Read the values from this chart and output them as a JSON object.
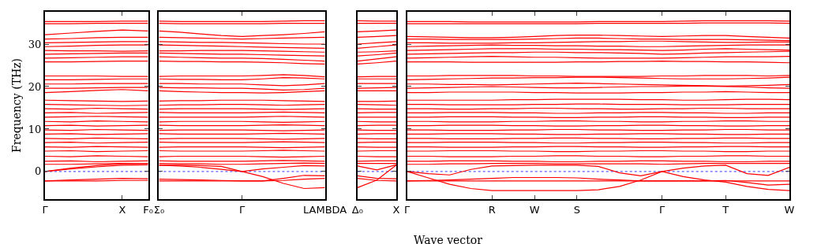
{
  "chart_data": [
    {
      "type": "line",
      "ylabel": "Frequency (THz)",
      "color": "#ff0000",
      "line_style": "solid",
      "marker": "none",
      "categories": [
        "Γ",
        null,
        null,
        "X",
        "F₀"
      ],
      "ylim": [
        -6.5,
        37.6
      ],
      "yticks": [
        0,
        10,
        20,
        30
      ],
      "ref_lines": [
        {
          "axis": "y",
          "value": 0,
          "color": "#0000ff",
          "line_style": "dotted"
        }
      ],
      "series": [
        {
          "values": [
            35.3,
            35.3,
            35.3,
            35.4,
            35.4
          ]
        },
        {
          "values": [
            34.8,
            34.8,
            34.9,
            34.9,
            34.9
          ]
        },
        {
          "values": [
            32.2,
            32.6,
            33.0,
            33.3,
            33.1
          ]
        },
        {
          "values": [
            31.2,
            31.3,
            31.5,
            31.6,
            31.6
          ]
        },
        {
          "values": [
            30.3,
            30.4,
            30.5,
            30.6,
            30.6
          ]
        },
        {
          "values": [
            29.4,
            29.5,
            29.7,
            29.8,
            29.8
          ]
        },
        {
          "values": [
            28.5,
            28.4,
            28.4,
            28.3,
            28.4
          ]
        },
        {
          "values": [
            27.6,
            27.7,
            27.8,
            27.9,
            27.9
          ]
        },
        {
          "values": [
            26.7,
            26.8,
            26.9,
            27.0,
            27.0
          ]
        },
        {
          "values": [
            25.8,
            25.8,
            25.9,
            26.0,
            26.0
          ]
        },
        {
          "values": [
            22.5,
            22.5,
            22.5,
            22.4,
            22.4
          ]
        },
        {
          "values": [
            21.6,
            21.6,
            21.7,
            21.8,
            21.8
          ]
        },
        {
          "values": [
            20.6,
            20.6,
            20.7,
            20.7,
            20.7
          ]
        },
        {
          "values": [
            19.6,
            19.6,
            19.7,
            19.8,
            19.8
          ]
        },
        {
          "values": [
            18.6,
            18.8,
            19.1,
            19.3,
            19.0
          ]
        },
        {
          "values": [
            16.8,
            16.7,
            16.6,
            16.5,
            16.6
          ]
        },
        {
          "values": [
            15.8,
            15.7,
            15.6,
            15.5,
            15.6
          ]
        },
        {
          "values": [
            14.8,
            14.7,
            14.9,
            14.8,
            14.7
          ]
        },
        {
          "values": [
            13.8,
            13.9,
            13.7,
            13.8,
            13.9
          ]
        },
        {
          "values": [
            12.8,
            12.9,
            13.0,
            12.9,
            12.8
          ]
        },
        {
          "values": [
            11.8,
            11.7,
            11.9,
            11.8,
            11.7
          ]
        },
        {
          "values": [
            10.8,
            10.9,
            10.7,
            10.8,
            10.9
          ]
        },
        {
          "values": [
            9.8,
            9.7,
            9.9,
            9.8,
            9.7
          ]
        },
        {
          "values": [
            8.8,
            8.9,
            8.7,
            8.8,
            8.9
          ]
        },
        {
          "values": [
            7.8,
            7.7,
            7.9,
            7.8,
            7.7
          ]
        },
        {
          "values": [
            6.8,
            6.9,
            6.7,
            6.8,
            6.9
          ]
        },
        {
          "values": [
            5.8,
            5.7,
            5.9,
            5.8,
            5.7
          ]
        },
        {
          "values": [
            4.8,
            4.9,
            4.7,
            4.8,
            4.9
          ]
        },
        {
          "values": [
            3.6,
            3.5,
            3.7,
            3.6,
            3.5
          ]
        },
        {
          "values": [
            2.4,
            2.5,
            2.3,
            2.4,
            2.5
          ]
        },
        {
          "values": [
            1.7,
            1.7,
            1.8,
            1.9,
            1.9
          ]
        },
        {
          "values": [
            0,
            0.6,
            1.1,
            1.5,
            1.6
          ]
        },
        {
          "values": [
            0,
            0.8,
            1.4,
            1.8,
            1.9
          ]
        },
        {
          "values": [
            -2.2,
            -2.2,
            -2.2,
            -2.1,
            -2.1
          ]
        },
        {
          "values": [
            -2.2,
            -2.0,
            -1.8,
            -1.6,
            -1.7
          ]
        }
      ]
    },
    {
      "type": "line",
      "color": "#ff0000",
      "line_style": "solid",
      "marker": "none",
      "tick_labels": "x",
      "categories": [
        "Σ₀",
        null,
        null,
        null,
        "Γ",
        null,
        null,
        null,
        "LAMBDA"
      ],
      "ylim": [
        -6.5,
        37.6
      ],
      "yticks": [
        0,
        10,
        20,
        30
      ],
      "ref_lines": [
        {
          "axis": "y",
          "value": 0,
          "color": "#0000ff",
          "line_style": "dotted"
        }
      ],
      "series": [
        {
          "values": [
            35.4,
            35.3,
            35.3,
            35.3,
            35.3,
            35.3,
            35.4,
            35.5,
            35.5
          ]
        },
        {
          "values": [
            34.9,
            34.8,
            34.8,
            34.8,
            34.8,
            34.8,
            34.9,
            34.9,
            34.9
          ]
        },
        {
          "values": [
            33.1,
            32.8,
            32.4,
            32.0,
            31.8,
            32.0,
            32.2,
            32.5,
            32.9
          ]
        },
        {
          "values": [
            31.6,
            31.5,
            31.4,
            31.3,
            31.2,
            31.3,
            31.4,
            31.5,
            31.6
          ]
        },
        {
          "values": [
            30.6,
            30.5,
            30.4,
            30.4,
            30.3,
            30.2,
            30.1,
            30.0,
            30.0
          ]
        },
        {
          "values": [
            29.8,
            29.7,
            29.6,
            29.5,
            29.4,
            29.3,
            29.2,
            29.1,
            29.0
          ]
        },
        {
          "values": [
            28.4,
            28.4,
            28.5,
            28.5,
            28.5,
            28.4,
            28.3,
            28.2,
            28.1
          ]
        },
        {
          "values": [
            27.9,
            27.8,
            27.7,
            27.6,
            27.6,
            27.5,
            27.4,
            27.3,
            27.2
          ]
        },
        {
          "values": [
            27.0,
            26.9,
            26.8,
            26.7,
            26.7,
            26.6,
            26.4,
            26.2,
            26.0
          ]
        },
        {
          "values": [
            26.0,
            25.9,
            25.9,
            25.8,
            25.8,
            25.7,
            25.6,
            25.4,
            25.3
          ]
        },
        {
          "values": [
            22.4,
            22.5,
            22.5,
            22.5,
            22.5,
            22.6,
            22.8,
            22.6,
            22.3
          ]
        },
        {
          "values": [
            21.8,
            21.7,
            21.7,
            21.6,
            21.6,
            21.8,
            22.1,
            22.0,
            21.8
          ]
        },
        {
          "values": [
            20.7,
            20.7,
            20.6,
            20.6,
            20.6,
            20.4,
            20.2,
            20.4,
            20.7
          ]
        },
        {
          "values": [
            19.8,
            19.7,
            19.7,
            19.6,
            19.6,
            19.4,
            19.2,
            19.3,
            19.6
          ]
        },
        {
          "values": [
            19.0,
            18.8,
            18.7,
            18.6,
            18.6,
            18.5,
            18.6,
            18.8,
            19.0
          ]
        },
        {
          "values": [
            16.6,
            16.7,
            16.7,
            16.8,
            16.8,
            16.8,
            16.7,
            16.6,
            16.5
          ]
        },
        {
          "values": [
            15.6,
            15.7,
            15.7,
            15.8,
            15.8,
            15.7,
            15.6,
            15.7,
            15.8
          ]
        },
        {
          "values": [
            14.7,
            14.8,
            14.8,
            14.8,
            14.8,
            14.7,
            14.6,
            14.7,
            14.8
          ]
        },
        {
          "values": [
            13.9,
            13.8,
            13.8,
            13.8,
            13.8,
            13.9,
            14.0,
            13.9,
            13.8
          ]
        },
        {
          "values": [
            12.8,
            12.8,
            12.8,
            12.8,
            12.8,
            12.9,
            13.0,
            12.9,
            12.8
          ]
        },
        {
          "values": [
            11.7,
            11.8,
            11.8,
            11.8,
            11.8,
            11.7,
            11.6,
            11.7,
            11.8
          ]
        },
        {
          "values": [
            10.9,
            10.8,
            10.8,
            10.8,
            10.8,
            10.9,
            11.0,
            10.9,
            10.8
          ]
        },
        {
          "values": [
            9.7,
            9.8,
            9.8,
            9.8,
            9.8,
            9.7,
            9.6,
            9.7,
            9.8
          ]
        },
        {
          "values": [
            8.9,
            8.8,
            8.8,
            8.8,
            8.8,
            8.9,
            9.0,
            8.9,
            8.8
          ]
        },
        {
          "values": [
            7.7,
            7.8,
            7.8,
            7.8,
            7.8,
            7.7,
            7.6,
            7.7,
            7.8
          ]
        },
        {
          "values": [
            6.9,
            6.8,
            6.8,
            6.8,
            6.8,
            6.9,
            7.0,
            6.9,
            6.8
          ]
        },
        {
          "values": [
            5.7,
            5.8,
            5.8,
            5.8,
            5.8,
            5.7,
            5.6,
            5.7,
            5.8
          ]
        },
        {
          "values": [
            4.9,
            4.8,
            4.8,
            4.8,
            4.8,
            4.9,
            5.0,
            4.9,
            4.8
          ]
        },
        {
          "values": [
            3.5,
            3.6,
            3.6,
            3.6,
            3.6,
            3.5,
            3.4,
            3.5,
            3.6
          ]
        },
        {
          "values": [
            2.5,
            2.4,
            2.4,
            2.4,
            2.4,
            2.5,
            2.6,
            2.5,
            2.4
          ]
        },
        {
          "values": [
            1.9,
            1.8,
            1.8,
            1.7,
            1.7,
            1.8,
            1.9,
            2.0,
            1.9
          ]
        },
        {
          "values": [
            1.5,
            1.3,
            1.0,
            0.5,
            0,
            -1.2,
            -2.8,
            -4.0,
            -3.8
          ]
        },
        {
          "values": [
            1.5,
            1.5,
            1.4,
            1.2,
            0,
            0.6,
            1.0,
            1.4,
            1.3
          ]
        },
        {
          "values": [
            -1.8,
            -1.9,
            -2.0,
            -2.1,
            -2.2,
            -2.2,
            -1.6,
            -0.9,
            -1.0
          ]
        },
        {
          "values": [
            -2.2,
            -2.2,
            -2.2,
            -2.2,
            -2.2,
            -2.2,
            -2.1,
            -1.8,
            -1.6
          ]
        }
      ]
    },
    {
      "type": "line",
      "color": "#ff0000",
      "line_style": "solid",
      "marker": "none",
      "tick_labels": "x",
      "categories": [
        "Δ₀",
        null,
        "X"
      ],
      "ylim": [
        -6.5,
        37.6
      ],
      "yticks": [
        0,
        10,
        20,
        30
      ],
      "ref_lines": [
        {
          "axis": "y",
          "value": 0,
          "color": "#0000ff",
          "line_style": "dotted"
        }
      ],
      "series": [
        {
          "values": [
            35.5,
            35.4,
            35.4
          ]
        },
        {
          "values": [
            34.9,
            34.9,
            34.9
          ]
        },
        {
          "values": [
            32.9,
            33.1,
            33.3
          ]
        },
        {
          "values": [
            31.6,
            31.8,
            32.0
          ]
        },
        {
          "values": [
            30.0,
            30.3,
            30.6
          ]
        },
        {
          "values": [
            29.0,
            29.4,
            29.8
          ]
        },
        {
          "values": [
            28.1,
            28.2,
            28.4
          ]
        },
        {
          "values": [
            27.2,
            27.5,
            27.9
          ]
        },
        {
          "values": [
            26.0,
            26.5,
            27.0
          ]
        },
        {
          "values": [
            25.3,
            25.6,
            26.0
          ]
        },
        {
          "values": [
            22.3,
            22.4,
            22.4
          ]
        },
        {
          "values": [
            21.8,
            21.8,
            21.8
          ]
        },
        {
          "values": [
            20.7,
            20.7,
            20.7
          ]
        },
        {
          "values": [
            19.6,
            19.7,
            19.8
          ]
        },
        {
          "values": [
            19.0,
            19.0,
            19.0
          ]
        },
        {
          "values": [
            16.5,
            16.5,
            16.6
          ]
        },
        {
          "values": [
            15.8,
            15.7,
            15.6
          ]
        },
        {
          "values": [
            14.8,
            14.7,
            14.7
          ]
        },
        {
          "values": [
            13.8,
            13.9,
            13.9
          ]
        },
        {
          "values": [
            12.8,
            12.8,
            12.8
          ]
        },
        {
          "values": [
            11.8,
            11.7,
            11.7
          ]
        },
        {
          "values": [
            10.8,
            10.9,
            10.9
          ]
        },
        {
          "values": [
            9.8,
            9.7,
            9.7
          ]
        },
        {
          "values": [
            8.8,
            8.9,
            8.9
          ]
        },
        {
          "values": [
            7.8,
            7.7,
            7.7
          ]
        },
        {
          "values": [
            6.8,
            6.9,
            6.9
          ]
        },
        {
          "values": [
            5.8,
            5.7,
            5.7
          ]
        },
        {
          "values": [
            4.8,
            4.9,
            4.9
          ]
        },
        {
          "values": [
            3.6,
            3.5,
            3.5
          ]
        },
        {
          "values": [
            2.4,
            2.5,
            2.5
          ]
        },
        {
          "values": [
            1.9,
            1.9,
            1.9
          ]
        },
        {
          "values": [
            -3.8,
            -2.0,
            1.5
          ]
        },
        {
          "values": [
            1.3,
            0.4,
            1.6
          ]
        },
        {
          "values": [
            -1.0,
            -1.6,
            -1.7
          ]
        },
        {
          "values": [
            -1.6,
            -2.1,
            -2.2
          ]
        }
      ]
    },
    {
      "type": "line",
      "xlabel": "Wave vector",
      "color": "#ff0000",
      "line_style": "solid",
      "marker": "none",
      "tick_labels": "x",
      "categories": [
        "Γ",
        null,
        null,
        null,
        "R",
        null,
        "W",
        null,
        "S",
        null,
        null,
        null,
        "Γ",
        null,
        null,
        "T",
        null,
        null,
        "W"
      ],
      "ylim": [
        -6.5,
        37.6
      ],
      "yticks": [
        0,
        10,
        20,
        30
      ],
      "ref_lines": [
        {
          "axis": "y",
          "value": 0,
          "color": "#0000ff",
          "line_style": "dotted"
        }
      ],
      "series": [
        {
          "values": [
            35.3,
            35.3,
            35.3,
            35.2,
            35.2,
            35.2,
            35.2,
            35.2,
            35.2,
            35.3,
            35.3,
            35.3,
            35.3,
            35.4,
            35.5,
            35.5,
            35.5,
            35.5,
            35.4
          ]
        },
        {
          "values": [
            34.8,
            34.8,
            34.8,
            34.8,
            34.8,
            34.8,
            34.8,
            34.8,
            34.8,
            34.9,
            34.9,
            34.9,
            34.9,
            34.9,
            35.0,
            35.0,
            35.0,
            35.0,
            34.9
          ]
        },
        {
          "values": [
            31.8,
            31.7,
            31.6,
            31.5,
            31.5,
            31.6,
            31.8,
            32.0,
            32.1,
            32.1,
            32.0,
            31.9,
            31.8,
            31.9,
            32.0,
            32.0,
            31.8,
            31.6,
            31.4
          ]
        },
        {
          "values": [
            31.2,
            31.2,
            31.1,
            31.1,
            31.1,
            31.1,
            31.2,
            31.3,
            31.4,
            31.4,
            31.3,
            31.2,
            31.2,
            31.1,
            31.1,
            31.1,
            31.0,
            30.9,
            30.8
          ]
        },
        {
          "values": [
            30.3,
            30.3,
            30.2,
            30.2,
            30.2,
            30.3,
            30.3,
            30.4,
            30.5,
            30.6,
            30.6,
            30.7,
            30.7,
            30.6,
            30.5,
            30.4,
            30.4,
            30.5,
            30.5
          ]
        },
        {
          "values": [
            29.4,
            29.5,
            29.6,
            29.7,
            29.8,
            29.7,
            29.7,
            29.6,
            29.6,
            29.5,
            29.5,
            29.4,
            29.4,
            29.5,
            29.6,
            29.7,
            29.8,
            29.8,
            29.8
          ]
        },
        {
          "values": [
            28.5,
            28.6,
            28.7,
            28.8,
            28.9,
            28.9,
            28.9,
            28.8,
            28.8,
            28.7,
            28.7,
            28.6,
            28.5,
            28.6,
            28.8,
            28.9,
            28.8,
            28.7,
            28.6
          ]
        },
        {
          "values": [
            27.6,
            27.7,
            27.8,
            27.9,
            28.0,
            28.0,
            28.1,
            28.1,
            28.0,
            28.0,
            27.9,
            27.8,
            27.6,
            27.7,
            27.9,
            28.0,
            28.1,
            28.2,
            28.3
          ]
        },
        {
          "values": [
            26.7,
            26.8,
            26.9,
            27.0,
            27.1,
            27.0,
            26.9,
            26.9,
            26.8,
            26.7,
            26.7,
            26.7,
            26.7,
            26.8,
            26.9,
            27.0,
            27.0,
            27.0,
            27.1
          ]
        },
        {
          "values": [
            25.8,
            25.8,
            25.8,
            25.7,
            25.7,
            25.7,
            25.7,
            25.7,
            25.8,
            25.8,
            25.9,
            25.9,
            26.0,
            25.9,
            25.9,
            25.8,
            25.8,
            25.7,
            25.6
          ]
        },
        {
          "values": [
            22.5,
            22.5,
            22.6,
            22.6,
            22.6,
            22.6,
            22.5,
            22.5,
            22.4,
            22.4,
            22.4,
            22.4,
            22.5,
            22.5,
            22.6,
            22.6,
            22.6,
            22.5,
            22.6
          ]
        },
        {
          "values": [
            21.6,
            21.7,
            21.8,
            21.9,
            22.0,
            22.0,
            22.1,
            22.1,
            22.2,
            22.2,
            22.1,
            22.0,
            21.9,
            21.8,
            21.8,
            21.8,
            21.9,
            22.0,
            22.2
          ]
        },
        {
          "values": [
            20.6,
            20.6,
            20.5,
            20.5,
            20.4,
            20.5,
            20.6,
            20.7,
            20.8,
            20.7,
            20.6,
            20.5,
            20.4,
            20.3,
            20.2,
            20.1,
            20.2,
            20.3,
            20.5
          ]
        },
        {
          "values": [
            19.6,
            19.7,
            19.8,
            19.9,
            20.0,
            19.9,
            19.8,
            19.7,
            19.7,
            19.8,
            19.9,
            20.0,
            20.0,
            20.1,
            20.1,
            20.0,
            19.9,
            19.7,
            19.6
          ]
        },
        {
          "values": [
            18.6,
            18.6,
            18.7,
            18.7,
            18.7,
            18.7,
            18.6,
            18.6,
            18.5,
            18.5,
            18.5,
            18.6,
            18.6,
            18.7,
            18.7,
            18.8,
            18.7,
            18.6,
            18.6
          ]
        },
        {
          "values": [
            16.8,
            16.8,
            16.8,
            16.8,
            16.8,
            16.9,
            16.9,
            17.0,
            17.0,
            17.0,
            17.0,
            16.9,
            16.9,
            16.8,
            16.8,
            16.9,
            17.0,
            17.0,
            16.9
          ]
        },
        {
          "values": [
            15.8,
            15.8,
            15.7,
            15.7,
            15.7,
            15.7,
            15.8,
            15.8,
            15.9,
            15.9,
            15.8,
            15.8,
            15.8,
            15.7,
            15.7,
            15.7,
            15.8,
            15.8,
            15.8
          ]
        },
        {
          "values": [
            14.8,
            14.8,
            14.7,
            14.7,
            14.8,
            14.8,
            14.9,
            14.9,
            14.8,
            14.8,
            14.7,
            14.7,
            14.8,
            14.8,
            14.9,
            14.9,
            14.8,
            14.8,
            14.8
          ]
        },
        {
          "values": [
            13.8,
            13.8,
            13.9,
            13.9,
            13.9,
            13.8,
            13.8,
            13.7,
            13.7,
            13.8,
            13.8,
            13.9,
            13.9,
            13.8,
            13.8,
            13.7,
            13.7,
            13.8,
            13.8
          ]
        },
        {
          "values": [
            12.8,
            12.8,
            12.9,
            12.9,
            12.9,
            12.8,
            12.8,
            12.7,
            12.7,
            12.8,
            12.8,
            12.9,
            12.9,
            12.8,
            12.8,
            12.7,
            12.7,
            12.8,
            12.8
          ]
        },
        {
          "values": [
            11.8,
            11.8,
            11.7,
            11.7,
            11.7,
            11.8,
            11.8,
            11.9,
            11.9,
            11.8,
            11.8,
            11.7,
            11.7,
            11.8,
            11.8,
            11.9,
            11.9,
            11.8,
            11.8
          ]
        },
        {
          "values": [
            10.8,
            10.8,
            10.9,
            10.9,
            10.9,
            10.8,
            10.8,
            10.7,
            10.7,
            10.8,
            10.8,
            10.9,
            10.9,
            10.8,
            10.8,
            10.7,
            10.7,
            10.8,
            10.8
          ]
        },
        {
          "values": [
            9.8,
            9.8,
            9.7,
            9.7,
            9.7,
            9.8,
            9.8,
            9.9,
            9.9,
            9.8,
            9.8,
            9.7,
            9.7,
            9.8,
            9.8,
            9.9,
            9.9,
            9.8,
            9.8
          ]
        },
        {
          "values": [
            8.8,
            8.8,
            8.9,
            8.9,
            8.9,
            8.8,
            8.8,
            8.7,
            8.7,
            8.8,
            8.8,
            8.9,
            8.9,
            8.8,
            8.8,
            8.7,
            8.7,
            8.8,
            8.8
          ]
        },
        {
          "values": [
            7.8,
            7.8,
            7.7,
            7.7,
            7.7,
            7.8,
            7.8,
            7.9,
            7.9,
            7.8,
            7.8,
            7.7,
            7.7,
            7.8,
            7.8,
            7.9,
            7.9,
            7.8,
            7.8
          ]
        },
        {
          "values": [
            6.8,
            6.8,
            6.9,
            6.9,
            6.9,
            6.8,
            6.8,
            6.7,
            6.7,
            6.8,
            6.8,
            6.9,
            6.9,
            6.8,
            6.8,
            6.7,
            6.7,
            6.8,
            6.8
          ]
        },
        {
          "values": [
            5.8,
            5.8,
            5.7,
            5.7,
            5.7,
            5.8,
            5.8,
            5.9,
            5.9,
            5.8,
            5.8,
            5.7,
            5.7,
            5.8,
            5.8,
            5.9,
            5.9,
            5.8,
            5.8
          ]
        },
        {
          "values": [
            4.8,
            4.8,
            4.9,
            4.9,
            4.9,
            4.8,
            4.8,
            4.7,
            4.7,
            4.8,
            4.8,
            4.9,
            4.9,
            4.8,
            4.8,
            4.7,
            4.7,
            4.8,
            4.8
          ]
        },
        {
          "values": [
            3.6,
            3.6,
            3.5,
            3.5,
            3.5,
            3.6,
            3.6,
            3.7,
            3.7,
            3.6,
            3.6,
            3.5,
            3.5,
            3.6,
            3.6,
            3.7,
            3.7,
            3.6,
            3.6
          ]
        },
        {
          "values": [
            2.4,
            2.4,
            2.5,
            2.5,
            2.5,
            2.4,
            2.4,
            2.3,
            2.3,
            2.4,
            2.4,
            2.5,
            2.5,
            2.4,
            2.4,
            2.3,
            2.3,
            2.4,
            2.4
          ]
        },
        {
          "values": [
            1.7,
            1.7,
            1.8,
            1.8,
            1.9,
            1.9,
            1.9,
            1.8,
            1.8,
            1.8,
            1.8,
            1.8,
            1.7,
            1.8,
            1.9,
            1.9,
            1.9,
            1.9,
            1.9
          ]
        },
        {
          "values": [
            0,
            -1.5,
            -3.0,
            -4.0,
            -4.5,
            -4.5,
            -4.5,
            -4.5,
            -4.5,
            -4.3,
            -3.5,
            -2.0,
            0,
            -1.2,
            -2.0,
            -2.5,
            -3.5,
            -4.2,
            -4.5
          ]
        },
        {
          "values": [
            0,
            -0.5,
            -0.8,
            0.5,
            1.3,
            1.4,
            1.5,
            1.5,
            1.5,
            1.2,
            -0.3,
            -1.0,
            0,
            0.8,
            1.3,
            1.5,
            -0.5,
            -0.9,
            1.0
          ]
        },
        {
          "values": [
            -2.2,
            -2.1,
            -2.0,
            -1.8,
            -1.6,
            -1.4,
            -1.4,
            -1.4,
            -1.5,
            -1.8,
            -2.0,
            -2.2,
            -2.2,
            -2.2,
            -2.2,
            -2.1,
            -2.6,
            -3.2,
            -3.0
          ]
        },
        {
          "values": [
            -2.2,
            -2.2,
            -2.2,
            -2.2,
            -2.2,
            -2.2,
            -2.2,
            -2.2,
            -2.2,
            -2.2,
            -2.2,
            -2.2,
            -2.2,
            -2.2,
            -2.2,
            -2.2,
            -2.2,
            -2.2,
            -2.2
          ]
        }
      ]
    }
  ]
}
